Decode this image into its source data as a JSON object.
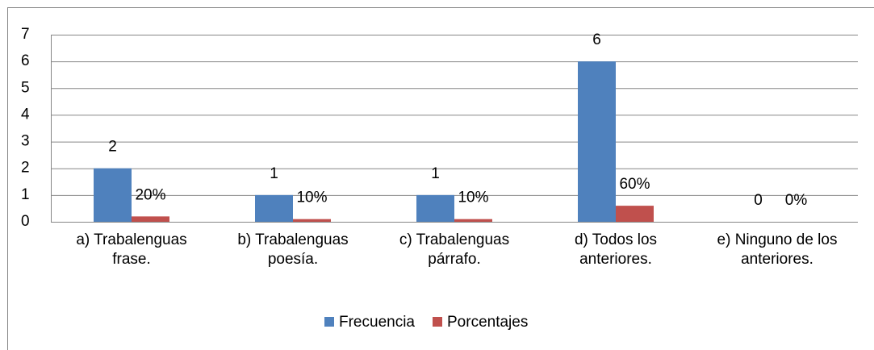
{
  "chart_data": {
    "type": "bar",
    "categories": [
      "a) Trabalenguas frase.",
      "b) Trabalenguas poesía.",
      "c) Trabalenguas párrafo.",
      "d) Todos los anteriores.",
      "e) Ninguno de los anteriores."
    ],
    "series": [
      {
        "name": "Frecuencia",
        "color": "#4f81bd",
        "values": [
          2,
          1,
          1,
          6,
          0
        ]
      },
      {
        "name": "Porcentajes",
        "color": "#c0504d",
        "values": [
          0.2,
          0.1,
          0.1,
          0.6,
          0
        ],
        "value_labels": [
          "20%",
          "10%",
          "10%",
          "60%",
          "0%"
        ]
      }
    ],
    "ylim": [
      0,
      7
    ],
    "yticks": [
      0,
      1,
      2,
      3,
      4,
      5,
      6,
      7
    ],
    "grid": true,
    "legend": "bottom"
  }
}
